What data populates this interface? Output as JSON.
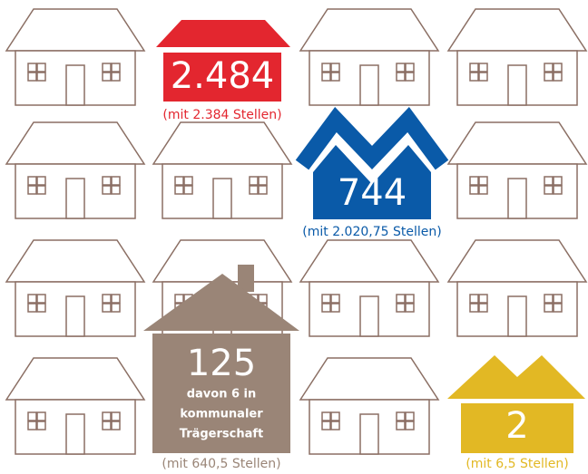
{
  "houses": [
    {
      "value": "2.484",
      "note": "(mit 2.384 Stellen)"
    },
    {
      "value": "744",
      "note": "(mit 2.020,75 Stellen)"
    },
    {
      "value": "125",
      "detail": [
        "davon 6 in",
        "kommunaler",
        "Trägerschaft"
      ],
      "note": "(mit 640,5 Stellen)"
    },
    {
      "value": "2",
      "note": "(mit 6,5 Stellen)"
    }
  ]
}
